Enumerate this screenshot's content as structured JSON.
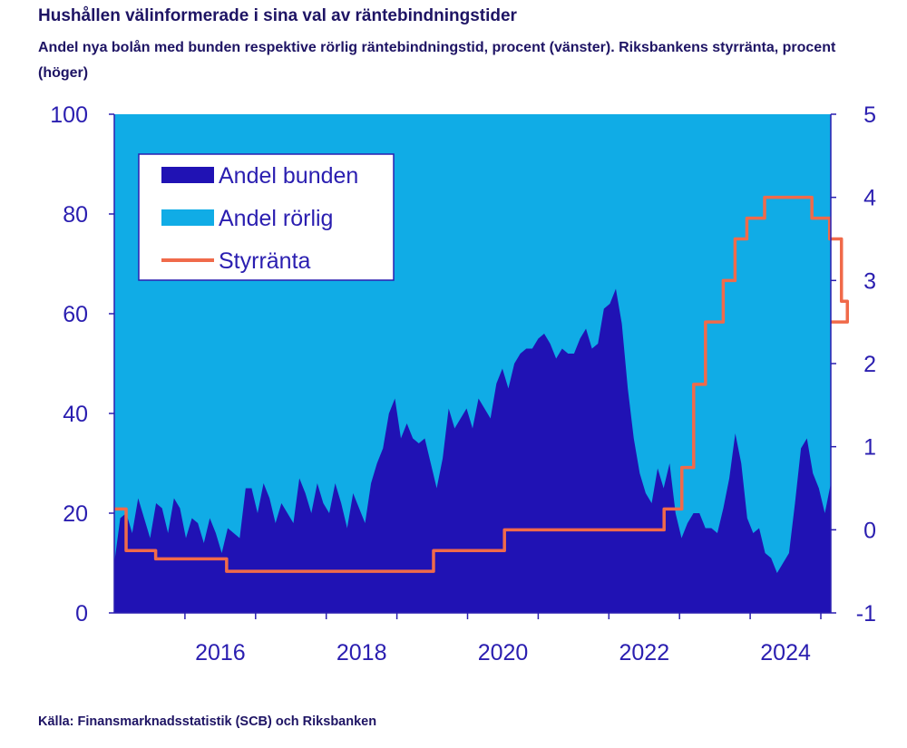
{
  "title": "Hushållen välinformerade i sina val av räntebindningstider",
  "subtitle": "Andel nya bolån med bunden respektive rörlig räntebindningstid, procent (vänster). Riksbankens styrränta, procent (höger)",
  "source": "Källa: Finansmarknadsstatistik (SCB) och Riksbanken",
  "chart_data": {
    "type": "area",
    "x_ticks": [
      "2016",
      "2018",
      "2020",
      "2022",
      "2024"
    ],
    "y_left": {
      "range": [
        0,
        100
      ],
      "ticks": [
        "0",
        "20",
        "40",
        "60",
        "80",
        "100"
      ]
    },
    "y_right": {
      "range": [
        -1,
        5
      ],
      "ticks": [
        "-1",
        "0",
        "1",
        "2",
        "3",
        "4",
        "5"
      ]
    },
    "legend": {
      "placement": "top-left",
      "entries": [
        "Andel bunden",
        "Andel rörlig",
        "Styrränta"
      ]
    },
    "colors": {
      "bunden": "#2012b4",
      "rorlig": "#10ace6",
      "styrranta": "#f06a4a",
      "axis": "#2a1eb0"
    },
    "series": [
      {
        "name": "Andel bunden",
        "axis": "left",
        "x_start": "2014-07",
        "frequency": "monthly",
        "values": [
          10,
          19,
          20,
          16,
          23,
          19,
          15,
          22,
          21,
          16,
          23,
          21,
          15,
          19,
          18,
          14,
          19,
          16,
          12,
          17,
          16,
          15,
          25,
          25,
          20,
          26,
          23,
          18,
          22,
          20,
          18,
          27,
          24,
          20,
          26,
          22,
          20,
          26,
          22,
          17,
          24,
          21,
          18,
          26,
          30,
          33,
          40,
          43,
          35,
          38,
          35,
          34,
          35,
          30,
          25,
          31,
          41,
          37,
          39,
          41,
          37,
          43,
          41,
          39,
          46,
          49,
          45,
          50,
          52,
          53,
          53,
          55,
          56,
          54,
          51,
          53,
          52,
          52,
          55,
          57,
          53,
          54,
          61,
          62,
          65,
          58,
          45,
          35,
          28,
          24,
          22,
          29,
          25,
          30,
          20,
          15,
          18,
          20,
          20,
          17,
          17,
          16,
          21,
          27,
          36,
          30,
          19,
          16,
          17,
          12,
          11,
          8,
          10,
          12,
          22,
          33,
          35,
          28,
          25,
          20,
          26
        ]
      },
      {
        "name": "Andel rörlig",
        "axis": "left",
        "note": "100 minus Andel bunden"
      },
      {
        "name": "Styrränta",
        "axis": "right",
        "steps": [
          [
            "2014-07",
            0.25
          ],
          [
            "2014-09",
            -0.25
          ],
          [
            "2014-12",
            -0.25
          ],
          [
            "2015-02",
            -0.35
          ],
          [
            "2016-02",
            -0.5
          ],
          [
            "2019-01",
            -0.25
          ],
          [
            "2020-01",
            0.0
          ],
          [
            "2022-04",
            0.25
          ],
          [
            "2022-07",
            0.75
          ],
          [
            "2022-09",
            1.75
          ],
          [
            "2022-11",
            2.5
          ],
          [
            "2023-02",
            3.0
          ],
          [
            "2023-04",
            3.5
          ],
          [
            "2023-06",
            3.75
          ],
          [
            "2023-09",
            4.0
          ],
          [
            "2024-05",
            3.75
          ],
          [
            "2024-08",
            3.5
          ],
          [
            "2024-10",
            2.75
          ],
          [
            "2024-11",
            2.5
          ]
        ],
        "x_end": "2024-12"
      }
    ]
  }
}
